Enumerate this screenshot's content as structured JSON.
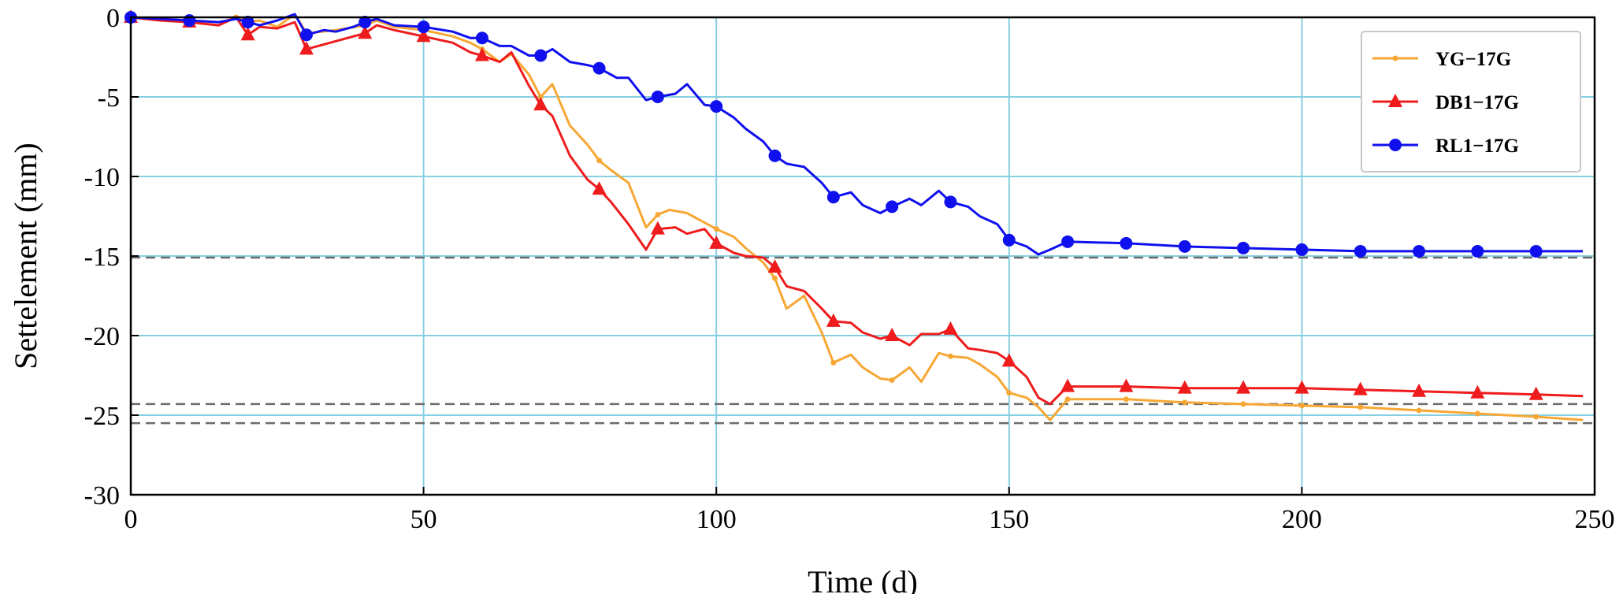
{
  "chart_data": {
    "type": "line",
    "xlabel": "Time (d)",
    "ylabel": "Settelement (mm)",
    "xlim": [
      0,
      250
    ],
    "ylim": [
      -30,
      0
    ],
    "xticks": [
      "0",
      "50",
      "100",
      "150",
      "200",
      "250"
    ],
    "yticks": [
      "0",
      "-5",
      "-10",
      "-15",
      "-20",
      "-25",
      "-30"
    ],
    "grid": true,
    "grid_color": "#87cfe3",
    "legend_position": "top-right",
    "reference_lines": [
      -15.1,
      -24.3,
      -25.5
    ],
    "series": [
      {
        "name": "YG−17G",
        "color": "#f7a733",
        "marker": "small-dot",
        "x": [
          0,
          5,
          10,
          15,
          18,
          20,
          22,
          25,
          28,
          30,
          35,
          40,
          42,
          45,
          50,
          55,
          58,
          60,
          63,
          65,
          68,
          70,
          72,
          75,
          78,
          80,
          82,
          85,
          88,
          90,
          92,
          95,
          98,
          100,
          103,
          105,
          108,
          110,
          112,
          115,
          118,
          120,
          123,
          125,
          128,
          130,
          133,
          135,
          138,
          140,
          143,
          145,
          148,
          150,
          153,
          155,
          157,
          160,
          170,
          180,
          190,
          200,
          210,
          220,
          230,
          240,
          248
        ],
        "y": [
          0,
          -0.2,
          -0.3,
          -0.5,
          0.1,
          -0.3,
          -0.2,
          -0.6,
          0.2,
          -1.0,
          -0.8,
          -0.5,
          -0.2,
          -0.6,
          -0.8,
          -1.2,
          -1.6,
          -2.0,
          -2.8,
          -2.3,
          -3.6,
          -5.0,
          -4.2,
          -6.8,
          -8.0,
          -9.0,
          -9.6,
          -10.4,
          -13.2,
          -12.4,
          -12.1,
          -12.3,
          -12.9,
          -13.3,
          -13.8,
          -14.5,
          -15.4,
          -16.4,
          -18.3,
          -17.5,
          -19.8,
          -21.7,
          -21.2,
          -22.0,
          -22.7,
          -22.8,
          -22.0,
          -22.9,
          -21.1,
          -21.3,
          -21.4,
          -21.8,
          -22.6,
          -23.6,
          -23.9,
          -24.5,
          -25.3,
          -24.0,
          -24.0,
          -24.2,
          -24.3,
          -24.4,
          -24.5,
          -24.7,
          -24.9,
          -25.1,
          -25.3
        ]
      },
      {
        "name": "DB1−17G",
        "color": "#ee1c1c",
        "marker": "triangle",
        "x": [
          0,
          5,
          10,
          15,
          18,
          20,
          22,
          25,
          28,
          30,
          35,
          40,
          42,
          45,
          50,
          55,
          58,
          60,
          63,
          65,
          68,
          70,
          72,
          75,
          78,
          80,
          82,
          85,
          88,
          90,
          93,
          95,
          98,
          100,
          103,
          105,
          108,
          110,
          112,
          115,
          118,
          120,
          123,
          125,
          128,
          130,
          133,
          135,
          138,
          140,
          143,
          145,
          148,
          150,
          153,
          155,
          157,
          160,
          170,
          180,
          190,
          200,
          210,
          220,
          230,
          240,
          248
        ],
        "y": [
          0,
          -0.2,
          -0.3,
          -0.5,
          0.0,
          -1.1,
          -0.6,
          -0.7,
          -0.3,
          -2.0,
          -1.5,
          -1.0,
          -0.5,
          -0.8,
          -1.2,
          -1.6,
          -2.2,
          -2.4,
          -2.8,
          -2.2,
          -4.3,
          -5.5,
          -6.2,
          -8.7,
          -10.2,
          -10.8,
          -11.6,
          -13.0,
          -14.6,
          -13.3,
          -13.2,
          -13.6,
          -13.3,
          -14.2,
          -14.8,
          -15.0,
          -15.1,
          -15.7,
          -16.9,
          -17.2,
          -18.3,
          -19.1,
          -19.2,
          -19.8,
          -20.2,
          -20.0,
          -20.6,
          -19.9,
          -19.9,
          -19.6,
          -20.8,
          -20.9,
          -21.1,
          -21.6,
          -22.6,
          -23.9,
          -24.3,
          -23.2,
          -23.2,
          -23.3,
          -23.3,
          -23.3,
          -23.4,
          -23.5,
          -23.6,
          -23.7,
          -23.8
        ]
      },
      {
        "name": "RL1−17G",
        "color": "#1010ee",
        "marker": "circle",
        "x": [
          0,
          5,
          10,
          15,
          18,
          20,
          22,
          25,
          28,
          30,
          33,
          35,
          38,
          40,
          42,
          45,
          50,
          55,
          58,
          60,
          63,
          65,
          68,
          70,
          72,
          75,
          78,
          80,
          83,
          85,
          88,
          90,
          93,
          95,
          98,
          100,
          103,
          105,
          108,
          110,
          112,
          115,
          118,
          120,
          123,
          125,
          128,
          130,
          133,
          135,
          138,
          140,
          143,
          145,
          148,
          150,
          153,
          155,
          157,
          160,
          170,
          180,
          190,
          200,
          210,
          220,
          230,
          240,
          248
        ],
        "y": [
          0,
          -0.1,
          -0.2,
          -0.3,
          -0.1,
          -0.3,
          -0.5,
          -0.2,
          0.2,
          -1.1,
          -0.8,
          -0.9,
          -0.6,
          -0.3,
          -0.1,
          -0.5,
          -0.6,
          -0.9,
          -1.3,
          -1.3,
          -1.8,
          -1.8,
          -2.4,
          -2.4,
          -2.0,
          -2.8,
          -3.0,
          -3.2,
          -3.8,
          -3.8,
          -5.2,
          -5.0,
          -4.8,
          -4.2,
          -5.5,
          -5.6,
          -6.3,
          -7.0,
          -7.8,
          -8.7,
          -9.2,
          -9.4,
          -10.4,
          -11.3,
          -11.0,
          -11.8,
          -12.3,
          -11.9,
          -11.4,
          -11.8,
          -10.9,
          -11.6,
          -11.9,
          -12.5,
          -13.0,
          -14.0,
          -14.4,
          -14.9,
          -14.6,
          -14.1,
          -14.2,
          -14.4,
          -14.5,
          -14.6,
          -14.7,
          -14.7,
          -14.7,
          -14.7,
          -14.7
        ]
      }
    ]
  }
}
